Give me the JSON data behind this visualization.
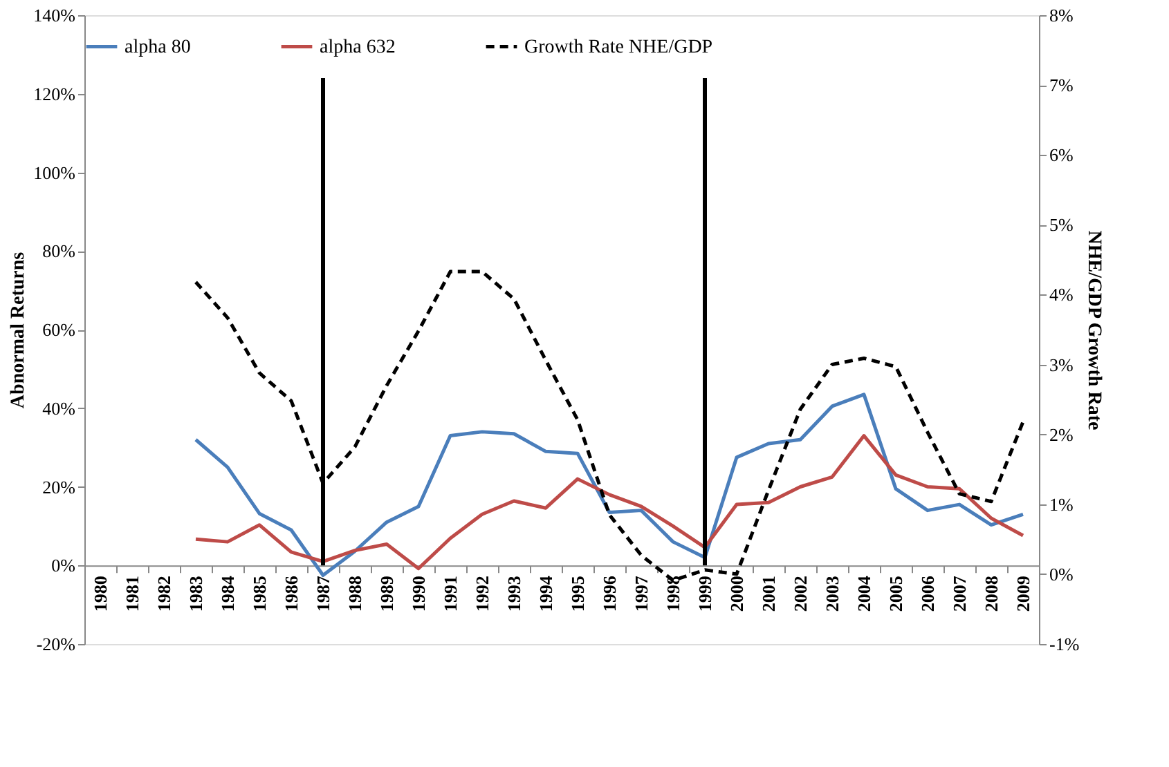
{
  "chart_data": {
    "type": "line",
    "categories": [
      "1980",
      "1981",
      "1982",
      "1983",
      "1984",
      "1985",
      "1986",
      "1987",
      "1988",
      "1989",
      "1990",
      "1991",
      "1992",
      "1993",
      "1994",
      "1995",
      "1996",
      "1997",
      "1998",
      "1999",
      "2000",
      "2001",
      "2002",
      "2003",
      "2004",
      "2005",
      "2006",
      "2007",
      "2008",
      "2009"
    ],
    "series": [
      {
        "name": "alpha 80",
        "color": "#4a7ebb",
        "line_style": "solid",
        "values": [
          null,
          null,
          null,
          32,
          25,
          13.2,
          9,
          -2.5,
          3.6,
          11,
          15,
          33,
          34,
          33.5,
          29,
          28.5,
          13.5,
          14,
          6,
          2,
          27.5,
          31,
          32,
          40.5,
          43.5,
          19.5,
          14,
          15.5,
          10.3,
          13
        ]
      },
      {
        "name": "alpha 632",
        "color": "#be4b48",
        "line_style": "solid",
        "values": [
          null,
          null,
          null,
          6.7,
          6,
          10.3,
          3.4,
          1,
          3.8,
          5.4,
          -0.8,
          6.9,
          13,
          16.4,
          14.6,
          22,
          18,
          15,
          10,
          4.6,
          15.5,
          16,
          20,
          22.5,
          33,
          23,
          20,
          19.5,
          12,
          7.6
        ]
      },
      {
        "name": "Growth Rate NHE/GDP",
        "color": "#000000",
        "line_style": "dashed",
        "axis": "y2",
        "values": [
          null,
          null,
          null,
          4.18,
          3.67,
          2.88,
          2.48,
          1.3,
          1.82,
          2.7,
          3.48,
          4.33,
          4.33,
          3.94,
          3.06,
          2.21,
          0.85,
          0.27,
          -0.09,
          0.06,
          0,
          1.2,
          2.36,
          3.0,
          3.09,
          2.97,
          2.03,
          1.15,
          1.04,
          2.18
        ]
      }
    ],
    "ylabel": "Abnormal Returns",
    "y2label": "NHE/GDP Growth Rate",
    "ylim": [
      -20,
      140
    ],
    "yticks": [
      {
        "value": -20,
        "label": "-20%"
      },
      {
        "value": 0,
        "label": "0%"
      },
      {
        "value": 20,
        "label": "20%"
      },
      {
        "value": 40,
        "label": "40%"
      },
      {
        "value": 60,
        "label": "60%"
      },
      {
        "value": 80,
        "label": "80%"
      },
      {
        "value": 100,
        "label": "100%"
      },
      {
        "value": 120,
        "label": "120%"
      },
      {
        "value": 140,
        "label": "140%"
      }
    ],
    "y2lim": [
      -1,
      8
    ],
    "y2ticks": [
      {
        "value": -1,
        "label": "-1%"
      },
      {
        "value": 0,
        "label": "0%"
      },
      {
        "value": 1,
        "label": "1%"
      },
      {
        "value": 2,
        "label": "2%"
      },
      {
        "value": 3,
        "label": "3%"
      },
      {
        "value": 4,
        "label": "4%"
      },
      {
        "value": 5,
        "label": "5%"
      },
      {
        "value": 6,
        "label": "6%"
      },
      {
        "value": 7,
        "label": "7%"
      },
      {
        "value": 8,
        "label": "8%"
      }
    ],
    "ref_lines": [
      {
        "axis": "x",
        "value": "1987",
        "color": "#000000"
      },
      {
        "axis": "x",
        "value": "1999",
        "color": "#000000"
      }
    ],
    "grid": false,
    "legend": "top"
  }
}
